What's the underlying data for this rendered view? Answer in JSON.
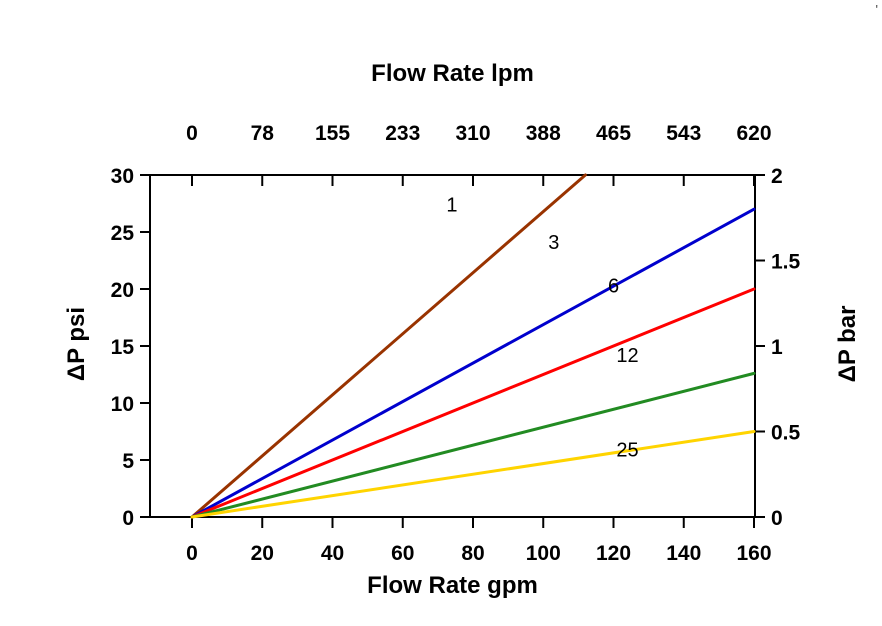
{
  "artifact": {
    "text": "'"
  },
  "colors": {
    "background": "#FFFFFF",
    "axis": "#000000",
    "text": "#000000"
  },
  "chart_data": {
    "type": "line",
    "title": "",
    "grid": false,
    "legend": "none (inline numeric labels on curves)",
    "axes": {
      "top": {
        "label": "Flow Rate lpm",
        "ticks": [
          0,
          78,
          155,
          233,
          310,
          388,
          465,
          543,
          620
        ],
        "range": [
          0,
          620
        ]
      },
      "bottom": {
        "label": "Flow Rate gpm",
        "ticks": [
          0,
          20,
          40,
          60,
          80,
          100,
          120,
          140,
          160
        ],
        "range": [
          0,
          160
        ]
      },
      "left": {
        "label": "ΔP psi",
        "ticks": [
          0,
          5,
          10,
          15,
          20,
          25,
          30
        ],
        "range": [
          0,
          30
        ]
      },
      "right": {
        "label": "ΔP bar",
        "ticks": [
          0,
          0.5,
          1,
          1.5,
          2
        ],
        "range": [
          0,
          2
        ]
      }
    },
    "series": [
      {
        "name": "1",
        "color": "#993300",
        "x": [
          0,
          112
        ],
        "y": [
          0,
          30
        ]
      },
      {
        "name": "3",
        "color": "#0000CD",
        "x": [
          0,
          160
        ],
        "y": [
          0,
          27
        ]
      },
      {
        "name": "6",
        "color": "#FF0000",
        "x": [
          0,
          160
        ],
        "y": [
          0,
          20
        ]
      },
      {
        "name": "12",
        "color": "#228B22",
        "x": [
          0,
          160
        ],
        "y": [
          0,
          12.6
        ]
      },
      {
        "name": "25",
        "color": "#FFD400",
        "x": [
          0,
          160
        ],
        "y": [
          0,
          7.5
        ]
      }
    ],
    "annotations": [
      {
        "text": "1",
        "x": 74,
        "y": 26.8
      },
      {
        "text": "3",
        "x": 103,
        "y": 23.5
      },
      {
        "text": "6",
        "x": 120,
        "y": 19.7
      },
      {
        "text": "12",
        "x": 124,
        "y": 13.6
      },
      {
        "text": "25",
        "x": 124,
        "y": 5.3
      }
    ]
  }
}
